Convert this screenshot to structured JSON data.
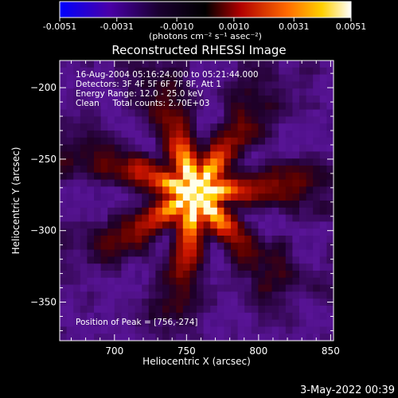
{
  "chart_data": {
    "type": "heatmap",
    "title": "Reconstructed RHESSI Image",
    "xlabel": "Heliocentric X (arcsec)",
    "ylabel": "Heliocentric Y (arcsec)",
    "x_ticks": [
      700,
      750,
      800,
      850
    ],
    "y_ticks": [
      -200,
      -250,
      -300,
      -350
    ],
    "xlim": [
      662,
      852
    ],
    "ylim": [
      -377,
      -181
    ],
    "colorbar": {
      "min": -0.0051,
      "max": 0.0051,
      "tick_labels": [
        "-0.0051",
        "-0.0031",
        "-0.0010",
        "0.0010",
        "0.0031",
        "0.0051"
      ],
      "units_label": "(photons cm⁻² s⁻¹ asec⁻²)",
      "colors": [
        "#0000ff",
        "#4a00a8",
        "#000000",
        "#b00000",
        "#ff6a00",
        "#ffd000",
        "#ffffff"
      ]
    },
    "annotations": [
      "16-Aug-2004 05:16:24.000 to 05:21:44.000",
      "Detectors: 3F 4F 5F 6F 7F 8F, Att 1",
      "Energy Range: 12.0 - 25.0 keV",
      "Clean     Total counts: 2.70E+03"
    ],
    "peak_label": "Position of Peak = [756,-274]",
    "peak": {
      "x": 756,
      "y": -274
    },
    "source_extent_arcsec": 60
  },
  "footer": {
    "date": "3-May-2022 00:39"
  }
}
